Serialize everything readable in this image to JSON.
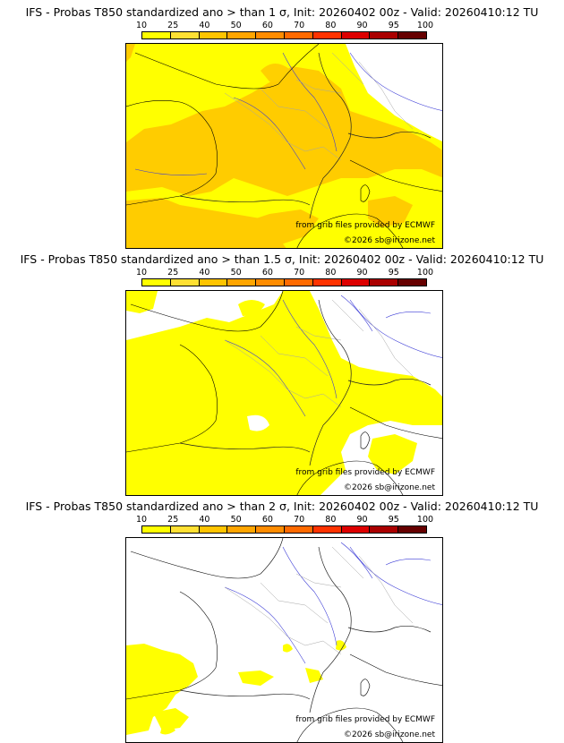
{
  "colorbar": {
    "labels": [
      "10",
      "25",
      "40",
      "50",
      "60",
      "70",
      "80",
      "90",
      "95",
      "100"
    ],
    "colors": [
      "#ffff00",
      "#ffe033",
      "#ffc400",
      "#ffa500",
      "#ff8c00",
      "#ff6a00",
      "#ff3300",
      "#dd0000",
      "#aa0000",
      "#660000"
    ]
  },
  "panels": [
    {
      "title": "IFS - Probas T850  standardized ano > than 1 σ, Init: 20260402 00z - Valid: 20260410:12 TU",
      "threshold": "1 σ"
    },
    {
      "title": "IFS - Probas T850  standardized ano > than 1.5 σ, Init: 20260402 00z - Valid: 20260410:12 TU",
      "threshold": "1.5 σ"
    },
    {
      "title": "IFS - Probas T850  standardized ano > than 2 σ, Init: 20260402 00z - Valid: 20260410:12 TU",
      "threshold": "2 σ"
    }
  ],
  "credits": {
    "source": "from grib files provided by ECMWF",
    "copyright": "©2026 sb@irizone.net"
  }
}
